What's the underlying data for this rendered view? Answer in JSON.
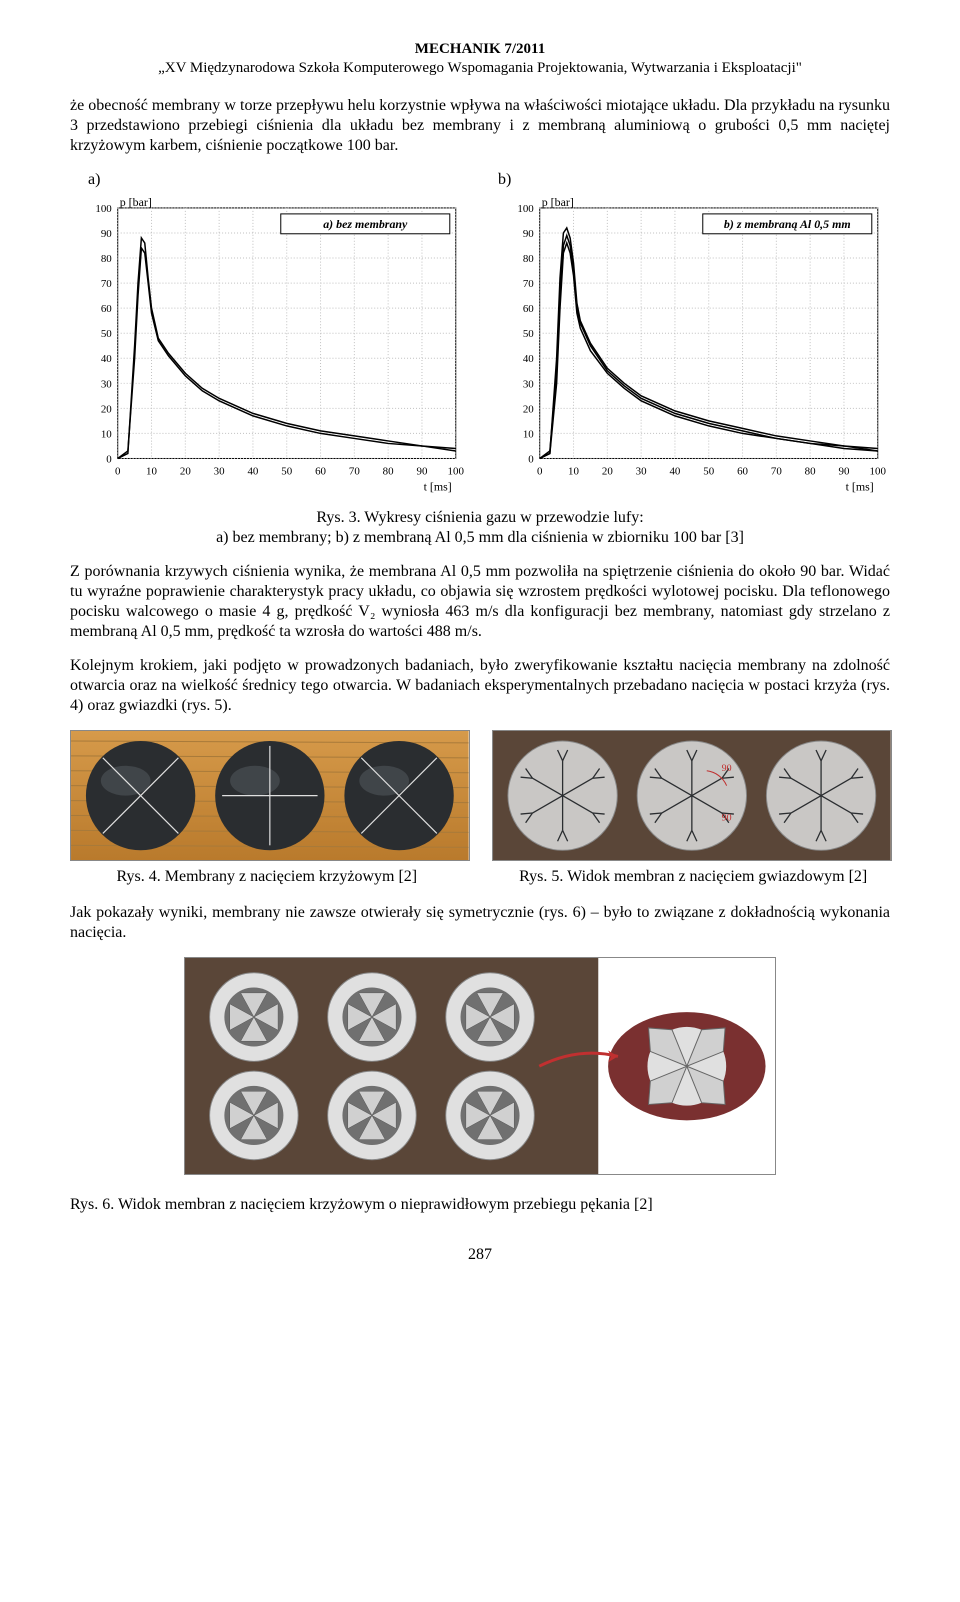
{
  "header": {
    "journal": "MECHANIK 7/2011",
    "conference": "„XV Międzynarodowa Szkoła Komputerowego Wspomagania Projektowania, Wytwarzania i Eksploatacji\""
  },
  "para1": "że obecność membrany w torze przepływu helu korzystnie wpływa na właściwości miotające układu. Dla przykładu na rysunku 3 przedstawiono przebiegi ciśnienia dla układu bez membrany i z membraną aluminiową o grubości 0,5 mm naciętej krzyżowym karbem, ciśnienie początkowe 100 bar.",
  "ab_labels": {
    "a": "a)",
    "b": "b)"
  },
  "chart_a": {
    "type": "line",
    "title_box": "a) bez membrany",
    "ylabel": "p [bar]",
    "xlabel": "t [ms]",
    "xlim": [
      0,
      100
    ],
    "ylim": [
      0,
      100
    ],
    "xticks": [
      0,
      10,
      20,
      30,
      40,
      50,
      60,
      70,
      80,
      90,
      100
    ],
    "yticks": [
      0,
      10,
      20,
      30,
      40,
      50,
      60,
      70,
      80,
      90,
      100
    ],
    "line_color": "#000000",
    "grid_color": "#c0c0c0",
    "background_color": "#ffffff",
    "border": true,
    "series": [
      {
        "x": [
          0,
          3,
          5,
          6,
          7,
          8,
          9,
          10,
          12,
          15,
          20,
          25,
          30,
          40,
          50,
          60,
          70,
          80,
          90,
          100
        ],
        "y": [
          0,
          2,
          45,
          70,
          88,
          86,
          72,
          60,
          48,
          42,
          34,
          28,
          24,
          18,
          14,
          11,
          9,
          7,
          5,
          4
        ]
      },
      {
        "x": [
          0,
          3,
          5,
          6,
          7,
          8,
          9,
          10,
          12,
          15,
          20,
          25,
          30,
          40,
          50,
          60,
          70,
          80,
          90,
          100
        ],
        "y": [
          0,
          3,
          40,
          65,
          84,
          82,
          70,
          58,
          47,
          41,
          33,
          27,
          23,
          17,
          13,
          10,
          8,
          6,
          5,
          3
        ]
      }
    ]
  },
  "chart_b": {
    "type": "line",
    "title_box": "b) z membraną Al 0,5 mm",
    "ylabel": "p [bar]",
    "xlabel": "t [ms]",
    "xlim": [
      0,
      100
    ],
    "ylim": [
      0,
      100
    ],
    "xticks": [
      0,
      10,
      20,
      30,
      40,
      50,
      60,
      70,
      80,
      90,
      100
    ],
    "yticks": [
      0,
      10,
      20,
      30,
      40,
      50,
      60,
      70,
      80,
      90,
      100
    ],
    "line_color": "#000000",
    "grid_color": "#c0c0c0",
    "background_color": "#ffffff",
    "border": true,
    "series": [
      {
        "x": [
          0,
          3,
          5,
          6,
          7,
          8,
          9,
          10,
          11,
          12,
          15,
          20,
          25,
          30,
          40,
          50,
          60,
          70,
          80,
          90,
          100
        ],
        "y": [
          0,
          2,
          40,
          72,
          90,
          92,
          88,
          78,
          62,
          55,
          46,
          36,
          30,
          25,
          19,
          15,
          12,
          9,
          7,
          5,
          4
        ]
      },
      {
        "x": [
          0,
          3,
          5,
          6,
          7,
          8,
          9,
          10,
          11,
          12,
          15,
          20,
          25,
          30,
          40,
          50,
          60,
          70,
          80,
          90,
          100
        ],
        "y": [
          0,
          3,
          35,
          65,
          85,
          89,
          85,
          75,
          60,
          54,
          45,
          35,
          29,
          24,
          18,
          14,
          11,
          8,
          6,
          5,
          3
        ]
      },
      {
        "x": [
          0,
          3,
          5,
          6,
          7,
          8,
          9,
          10,
          11,
          12,
          15,
          20,
          25,
          30,
          40,
          50,
          60,
          70,
          80,
          90,
          100
        ],
        "y": [
          0,
          2,
          30,
          60,
          82,
          86,
          82,
          73,
          58,
          52,
          43,
          34,
          28,
          23,
          17,
          13,
          10,
          8,
          6,
          4,
          3
        ]
      }
    ]
  },
  "fig3_caption_line1": "Rys. 3. Wykresy ciśnienia gazu w przewodzie lufy:",
  "fig3_caption_line2": "a) bez membrany; b) z membraną Al 0,5 mm dla ciśnienia w zbiorniku 100 bar [3]",
  "para2": "Z porównania krzywych ciśnienia wynika, że membrana Al 0,5 mm pozwoliła na spiętrzenie ciśnienia do około 90 bar. Widać tu wyraźne poprawienie charakterystyk pracy układu, co objawia się wzrostem prędkości wylotowej pocisku. Dla teflonowego pocisku walcowego o masie 4 g, prędkość V₂ wyniosła 463 m/s dla konfiguracji bez membrany, natomiast gdy strzelano z membraną Al 0,5 mm, prędkość ta wzrosła do wartości 488 m/s.",
  "para3": "Kolejnym krokiem, jaki podjęto w prowadzonych badaniach, było zweryfikowanie kształtu nacięcia membrany na zdolność otwarcia oraz na wielkość średnicy tego otwarcia. W badaniach eksperymentalnych przebadano nacięcia w postaci krzyża (rys. 4) oraz gwiazdki (rys. 5).",
  "fig4": {
    "caption": "Rys. 4. Membrany z nacięciem krzyżowym [2]",
    "bg_top": "#d69a4a",
    "bg_bottom": "#b97a2c",
    "disc_color": "#2a2d30",
    "cut_color": "#e0e0e0",
    "discs": 3,
    "cut_types": [
      "x",
      "plus",
      "x"
    ]
  },
  "fig5": {
    "caption": "Rys. 5. Widok membran z nacięciem gwiazdowym [2]",
    "bg_color": "#5a4638",
    "disc_color": "#c9c7c5",
    "cut_color": "#2a2d30",
    "annot_color": "#c03030",
    "discs": 3,
    "annotations": [
      "90",
      "90",
      "90"
    ]
  },
  "para4": "Jak pokazały wyniki, membrany nie zawsze otwierały się symetrycznie (rys. 6) – było to związane z dokładnością wykonania nacięcia.",
  "fig6": {
    "bg_color": "#5a4638",
    "ring_outer": "#e0e0e0",
    "ring_inner": "#707070",
    "petal_color": "#d0d0d0",
    "callout_bg": "#7a3030"
  },
  "fig6_caption": "Rys. 6. Widok membran z nacięciem krzyżowym o nieprawidłowym przebiegu pękania [2]",
  "page_number": "287"
}
